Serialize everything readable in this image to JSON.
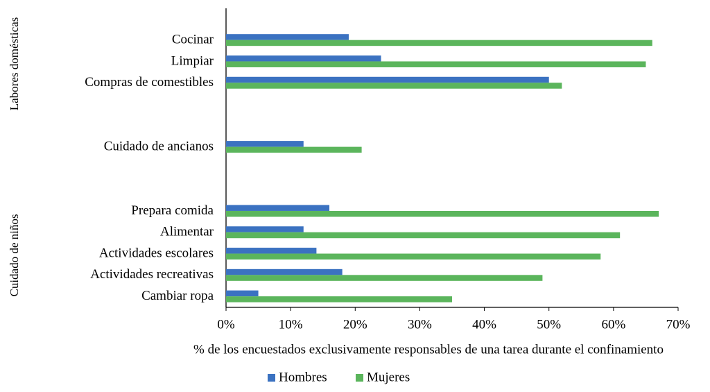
{
  "chart_data": {
    "type": "bar",
    "orientation": "horizontal",
    "group_labels": [
      "Labores domésticas",
      "Cuidado de niños"
    ],
    "categories": [
      null,
      "Cocinar",
      "Limpiar",
      "Compras de comestibles",
      null,
      null,
      "Cuidado de ancianos",
      null,
      null,
      "Prepara comida",
      "Alimentar",
      "Actividades escolares",
      "Actividades recreativas",
      "Cambiar ropa"
    ],
    "series": [
      {
        "name": "Hombres",
        "color": "#3b72c1",
        "values": [
          null,
          19,
          24,
          50,
          null,
          null,
          12,
          null,
          null,
          16,
          12,
          14,
          18,
          5
        ]
      },
      {
        "name": "Mujeres",
        "color": "#5bb55c",
        "values": [
          null,
          66,
          65,
          52,
          null,
          null,
          21,
          null,
          null,
          67,
          61,
          58,
          49,
          35
        ]
      }
    ],
    "xlim": [
      0,
      70
    ],
    "xticks": [
      {
        "value": 0,
        "label": "0%"
      },
      {
        "value": 10,
        "label": "10%"
      },
      {
        "value": 20,
        "label": "20%"
      },
      {
        "value": 30,
        "label": "30%"
      },
      {
        "value": 40,
        "label": "40%"
      },
      {
        "value": 50,
        "label": "50%"
      },
      {
        "value": 60,
        "label": "60%"
      },
      {
        "value": 70,
        "label": "70%"
      }
    ],
    "xlabel": "% de los encuestados exclusivamente responsables de una tarea durante el confinamiento",
    "legend": "bottom"
  }
}
